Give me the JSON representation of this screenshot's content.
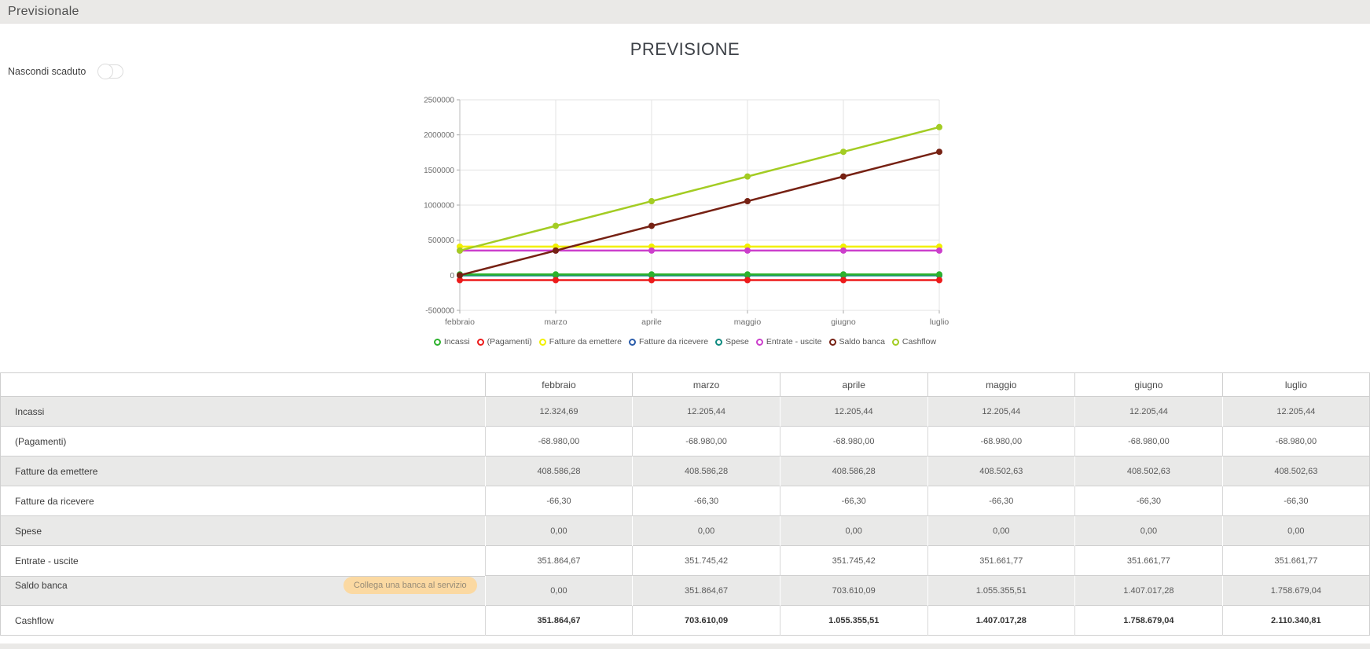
{
  "topbar": {
    "title": "Previsionale"
  },
  "controls": {
    "hide_expired_label": "Nascondi scaduto",
    "toggle_state": "off"
  },
  "chart_data": {
    "type": "line",
    "title": "PREVISIONE",
    "x": [
      "febbraio",
      "marzo",
      "aprile",
      "maggio",
      "giugno",
      "luglio"
    ],
    "ylim": [
      -500000,
      2500000
    ],
    "ytick_step": 500000,
    "ytick_labels": [
      "2500000",
      "2000000",
      "1500000",
      "1000000",
      "500000",
      "0",
      "-500000"
    ],
    "grid": true,
    "legend_position": "bottom",
    "series": [
      {
        "name": "Incassi",
        "color": "#2db22d",
        "values": [
          12324.69,
          12205.44,
          12205.44,
          12205.44,
          12205.44,
          12205.44
        ]
      },
      {
        "name": "(Pagamenti)",
        "color": "#ed1b1b",
        "values": [
          -68980.0,
          -68980.0,
          -68980.0,
          -68980.0,
          -68980.0,
          -68980.0
        ]
      },
      {
        "name": "Fatture da emettere",
        "color": "#f2f000",
        "values": [
          408586.28,
          408586.28,
          408586.28,
          408502.63,
          408502.63,
          408502.63
        ]
      },
      {
        "name": "Fatture da ricevere",
        "color": "#2a5caa",
        "values": [
          -66.3,
          -66.3,
          -66.3,
          -66.3,
          -66.3,
          -66.3
        ]
      },
      {
        "name": "Spese",
        "color": "#0f8b80",
        "values": [
          0,
          0,
          0,
          0,
          0,
          0
        ]
      },
      {
        "name": "Entrate - uscite",
        "color": "#cc3fcc",
        "values": [
          351864.67,
          351745.42,
          351745.42,
          351661.77,
          351661.77,
          351661.77
        ]
      },
      {
        "name": "Saldo banca",
        "color": "#762113",
        "values": [
          0,
          351864.67,
          703610.09,
          1055355.51,
          1407017.28,
          1758679.04
        ]
      },
      {
        "name": "Cashflow",
        "color": "#a3cc23",
        "values": [
          351864.67,
          703610.09,
          1055355.51,
          1407017.28,
          1758679.04,
          2110340.81
        ]
      }
    ]
  },
  "table": {
    "columns": [
      "febbraio",
      "marzo",
      "aprile",
      "maggio",
      "giugno",
      "luglio"
    ],
    "rows": [
      {
        "label": "Incassi",
        "values": [
          "12.324,69",
          "12.205,44",
          "12.205,44",
          "12.205,44",
          "12.205,44",
          "12.205,44"
        ]
      },
      {
        "label": "(Pagamenti)",
        "values": [
          "-68.980,00",
          "-68.980,00",
          "-68.980,00",
          "-68.980,00",
          "-68.980,00",
          "-68.980,00"
        ]
      },
      {
        "label": "Fatture da emettere",
        "values": [
          "408.586,28",
          "408.586,28",
          "408.586,28",
          "408.502,63",
          "408.502,63",
          "408.502,63"
        ]
      },
      {
        "label": "Fatture da ricevere",
        "values": [
          "-66,30",
          "-66,30",
          "-66,30",
          "-66,30",
          "-66,30",
          "-66,30"
        ]
      },
      {
        "label": "Spese",
        "values": [
          "0,00",
          "0,00",
          "0,00",
          "0,00",
          "0,00",
          "0,00"
        ]
      },
      {
        "label": "Entrate - uscite",
        "values": [
          "351.864,67",
          "351.745,42",
          "351.745,42",
          "351.661,77",
          "351.661,77",
          "351.661,77"
        ]
      },
      {
        "label": "Saldo banca",
        "button": "Collega una banca al servizio",
        "values": [
          "0,00",
          "351.864,67",
          "703.610,09",
          "1.055.355,51",
          "1.407.017,28",
          "1.758.679,04"
        ]
      },
      {
        "label": "Cashflow",
        "bold": true,
        "values": [
          "351.864,67",
          "703.610,09",
          "1.055.355,51",
          "1.407.017,28",
          "1.758.679,04",
          "2.110.340,81"
        ]
      }
    ]
  },
  "colors": {
    "topbar_bg": "#eae9e7",
    "table_alt_row": "#e9e9e8",
    "bank_button_bg": "#fbd9a2",
    "grid": "#e3e3e3"
  }
}
